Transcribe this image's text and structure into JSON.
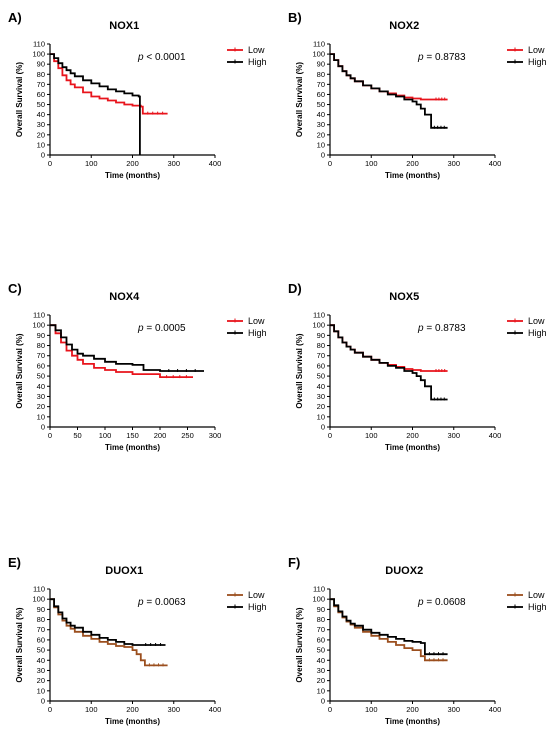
{
  "figure": {
    "panels": [
      {
        "letter": "A)",
        "gene": "NOX1",
        "p_prefix": "p",
        "p_text": " < 0.0001"
      },
      {
        "letter": "B)",
        "gene": "NOX2",
        "p_prefix": "p",
        "p_text": " = 0.8783"
      },
      {
        "letter": "C)",
        "gene": "NOX4",
        "p_prefix": "p",
        "p_text": " = 0.0005"
      },
      {
        "letter": "D)",
        "gene": "NOX5",
        "p_prefix": "p",
        "p_text": " = 0.8783"
      },
      {
        "letter": "E)",
        "gene": "DUOX1",
        "p_prefix": "p",
        "p_text": " = 0.0063"
      },
      {
        "letter": "F)",
        "gene": "DUOX2",
        "p_prefix": "p",
        "p_text": " = 0.0608"
      }
    ]
  },
  "chart_data": [
    {
      "type": "line",
      "title": "NOX1",
      "xlabel": "Time (months)",
      "ylabel": "Overall Survival (%)",
      "xlim": [
        0,
        400
      ],
      "ylim": [
        0,
        110
      ],
      "xticks": [
        0,
        100,
        200,
        300,
        400
      ],
      "yticks": [
        0,
        10,
        20,
        30,
        40,
        50,
        60,
        70,
        80,
        90,
        100,
        110
      ],
      "legend": "top-right",
      "annotation": "p < 0.0001",
      "series": [
        {
          "name": "Low",
          "color": "#e8141c",
          "x": [
            0,
            10,
            20,
            30,
            40,
            50,
            60,
            80,
            100,
            120,
            140,
            160,
            180,
            200,
            220,
            225,
            285
          ],
          "y": [
            100,
            93,
            86,
            79,
            74,
            70,
            67,
            62,
            58,
            56,
            54,
            52,
            50,
            49,
            48,
            41,
            41
          ]
        },
        {
          "name": "High",
          "color": "#000000",
          "x": [
            0,
            10,
            20,
            30,
            40,
            50,
            60,
            80,
            100,
            120,
            140,
            160,
            180,
            200,
            215,
            218,
            218
          ],
          "y": [
            100,
            96,
            91,
            87,
            84,
            81,
            78,
            74,
            71,
            68,
            65,
            63,
            61,
            59,
            58,
            58,
            0
          ]
        }
      ]
    },
    {
      "type": "line",
      "title": "NOX2",
      "xlabel": "Time (months)",
      "ylabel": "Overall Survival (%)",
      "xlim": [
        0,
        400
      ],
      "ylim": [
        0,
        110
      ],
      "xticks": [
        0,
        100,
        200,
        300,
        400
      ],
      "yticks": [
        0,
        10,
        20,
        30,
        40,
        50,
        60,
        70,
        80,
        90,
        100,
        110
      ],
      "legend": "top-right",
      "annotation": "p = 0.8783",
      "series": [
        {
          "name": "Low",
          "color": "#e8141c",
          "x": [
            0,
            10,
            20,
            30,
            40,
            50,
            60,
            80,
            100,
            120,
            140,
            160,
            180,
            200,
            220,
            250,
            285
          ],
          "y": [
            100,
            94,
            88,
            83,
            79,
            76,
            73,
            69,
            66,
            63,
            61,
            59,
            57,
            56,
            55,
            55,
            55
          ]
        },
        {
          "name": "High",
          "color": "#000000",
          "x": [
            0,
            10,
            20,
            30,
            40,
            50,
            60,
            80,
            100,
            120,
            140,
            160,
            180,
            200,
            210,
            220,
            230,
            245,
            285
          ],
          "y": [
            100,
            94,
            88,
            83,
            79,
            76,
            73,
            69,
            66,
            63,
            60,
            58,
            55,
            53,
            50,
            46,
            40,
            27,
            27
          ]
        }
      ]
    },
    {
      "type": "line",
      "title": "NOX4",
      "xlabel": "Time (months)",
      "ylabel": "Overall Survival (%)",
      "xlim": [
        0,
        300
      ],
      "ylim": [
        0,
        110
      ],
      "xticks": [
        0,
        50,
        100,
        150,
        200,
        250,
        300
      ],
      "yticks": [
        0,
        10,
        20,
        30,
        40,
        50,
        60,
        70,
        80,
        90,
        100,
        110
      ],
      "legend": "top-right",
      "annotation": "p = 0.0005",
      "series": [
        {
          "name": "Low",
          "color": "#e8141c",
          "x": [
            0,
            10,
            20,
            30,
            40,
            50,
            60,
            80,
            100,
            120,
            150,
            200,
            260
          ],
          "y": [
            100,
            92,
            83,
            75,
            70,
            66,
            62,
            58,
            56,
            54,
            52,
            49,
            49
          ]
        },
        {
          "name": "High",
          "color": "#000000",
          "x": [
            0,
            10,
            20,
            30,
            40,
            50,
            60,
            80,
            100,
            120,
            150,
            170,
            200,
            280
          ],
          "y": [
            100,
            95,
            88,
            81,
            76,
            72,
            70,
            67,
            64,
            62,
            61,
            56,
            55,
            55
          ]
        }
      ]
    },
    {
      "type": "line",
      "title": "NOX5",
      "xlabel": "Time (months)",
      "ylabel": "Overall Survival (%)",
      "xlim": [
        0,
        400
      ],
      "ylim": [
        0,
        110
      ],
      "xticks": [
        0,
        100,
        200,
        300,
        400
      ],
      "yticks": [
        0,
        10,
        20,
        30,
        40,
        50,
        60,
        70,
        80,
        90,
        100,
        110
      ],
      "legend": "top-right",
      "annotation": "p = 0.8783",
      "series": [
        {
          "name": "Low",
          "color": "#e8141c",
          "x": [
            0,
            10,
            20,
            30,
            40,
            50,
            60,
            80,
            100,
            120,
            140,
            160,
            180,
            200,
            220,
            250,
            285
          ],
          "y": [
            100,
            94,
            88,
            83,
            79,
            76,
            73,
            69,
            66,
            63,
            61,
            59,
            57,
            56,
            55,
            55,
            55
          ]
        },
        {
          "name": "High",
          "color": "#000000",
          "x": [
            0,
            10,
            20,
            30,
            40,
            50,
            60,
            80,
            100,
            120,
            140,
            160,
            180,
            200,
            210,
            220,
            230,
            245,
            285
          ],
          "y": [
            100,
            94,
            88,
            83,
            79,
            76,
            73,
            69,
            66,
            63,
            60,
            58,
            55,
            53,
            50,
            46,
            40,
            27,
            27
          ]
        }
      ]
    },
    {
      "type": "line",
      "title": "DUOX1",
      "xlabel": "Time (months)",
      "ylabel": "Overall Survival (%)",
      "xlim": [
        0,
        400
      ],
      "ylim": [
        0,
        110
      ],
      "xticks": [
        0,
        100,
        200,
        300,
        400
      ],
      "yticks": [
        0,
        10,
        20,
        30,
        40,
        50,
        60,
        70,
        80,
        90,
        100,
        110
      ],
      "legend": "top-right",
      "annotation": "p = 0.0063",
      "series": [
        {
          "name": "Low",
          "color": "#9b4f1e",
          "x": [
            0,
            10,
            20,
            30,
            40,
            50,
            60,
            80,
            100,
            120,
            140,
            160,
            180,
            200,
            210,
            220,
            230,
            285
          ],
          "y": [
            100,
            92,
            85,
            79,
            74,
            71,
            68,
            64,
            61,
            58,
            56,
            54,
            53,
            50,
            46,
            40,
            35,
            35
          ]
        },
        {
          "name": "High",
          "color": "#000000",
          "x": [
            0,
            10,
            20,
            30,
            40,
            50,
            60,
            80,
            100,
            120,
            140,
            160,
            180,
            200,
            220,
            280
          ],
          "y": [
            100,
            93,
            87,
            81,
            77,
            74,
            72,
            68,
            65,
            62,
            60,
            58,
            56,
            55,
            55,
            55
          ]
        }
      ]
    },
    {
      "type": "line",
      "title": "DUOX2",
      "xlabel": "Time (months)",
      "ylabel": "Overall Survival (%)",
      "xlim": [
        0,
        400
      ],
      "ylim": [
        0,
        110
      ],
      "xticks": [
        0,
        100,
        200,
        300,
        400
      ],
      "yticks": [
        0,
        10,
        20,
        30,
        40,
        50,
        60,
        70,
        80,
        90,
        100,
        110
      ],
      "legend": "top-right",
      "annotation": "p = 0.0608",
      "series": [
        {
          "name": "Low",
          "color": "#9b4f1e",
          "x": [
            0,
            10,
            20,
            30,
            40,
            50,
            60,
            80,
            100,
            120,
            140,
            160,
            180,
            200,
            220,
            230,
            285
          ],
          "y": [
            100,
            93,
            87,
            82,
            78,
            75,
            72,
            68,
            64,
            61,
            58,
            55,
            52,
            50,
            44,
            40,
            40
          ]
        },
        {
          "name": "High",
          "color": "#000000",
          "x": [
            0,
            10,
            20,
            30,
            40,
            50,
            60,
            80,
            100,
            120,
            140,
            160,
            180,
            200,
            220,
            230,
            285
          ],
          "y": [
            100,
            94,
            88,
            83,
            79,
            76,
            74,
            70,
            67,
            65,
            63,
            61,
            59,
            58,
            57,
            46,
            46
          ]
        }
      ]
    }
  ]
}
